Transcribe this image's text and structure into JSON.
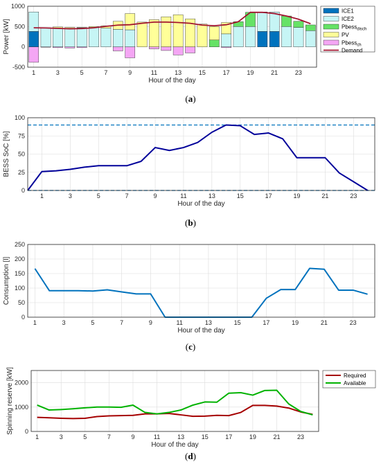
{
  "chart_data": [
    {
      "type": "bar",
      "panel_label": "(a)",
      "xlabel": "Hour of the day",
      "ylabel": "Power [kW]",
      "ylim": [
        -500,
        1000
      ],
      "yticks": [
        -500,
        0,
        500,
        1000
      ],
      "xticks": [
        1,
        3,
        5,
        7,
        9,
        11,
        13,
        15,
        17,
        19,
        21,
        23
      ],
      "grid": true,
      "legend_position": "outside-right",
      "hours": [
        1,
        2,
        3,
        4,
        5,
        6,
        7,
        8,
        9,
        10,
        11,
        12,
        13,
        14,
        15,
        16,
        17,
        18,
        19,
        20,
        21,
        22,
        23,
        24
      ],
      "series": [
        {
          "name": "ICE1",
          "color": "#0072BD",
          "values": [
            380,
            0,
            0,
            0,
            0,
            0,
            0,
            0,
            0,
            0,
            0,
            0,
            0,
            0,
            0,
            0,
            0,
            0,
            0,
            380,
            380,
            0,
            0,
            0
          ]
        },
        {
          "name": "ICE2",
          "color": "#C6F5F5",
          "values": [
            480,
            470,
            460,
            460,
            470,
            480,
            460,
            430,
            420,
            0,
            0,
            0,
            0,
            0,
            0,
            0,
            320,
            500,
            500,
            480,
            480,
            500,
            480,
            400
          ]
        },
        {
          "name": "Pbess",
          "sub": "disch",
          "color": "#66E266",
          "values": [
            0,
            0,
            0,
            0,
            0,
            0,
            0,
            0,
            0,
            0,
            0,
            0,
            0,
            0,
            0,
            170,
            0,
            120,
            350,
            0,
            0,
            260,
            150,
            140
          ]
        },
        {
          "name": "PV",
          "color": "#FFFF99",
          "values": [
            0,
            0,
            30,
            20,
            10,
            20,
            60,
            200,
            400,
            610,
            670,
            740,
            790,
            690,
            560,
            330,
            280,
            0,
            0,
            0,
            0,
            0,
            0,
            0
          ]
        },
        {
          "name": "Pbess",
          "sub": "ch",
          "color": "#F4A6F4",
          "values": [
            -380,
            -10,
            -20,
            -30,
            -20,
            0,
            0,
            -100,
            -270,
            0,
            -50,
            -90,
            -200,
            -150,
            0,
            0,
            -20,
            0,
            0,
            0,
            0,
            0,
            0,
            0
          ]
        }
      ],
      "demand": {
        "name": "Demand",
        "color": "#A2142F",
        "values": [
          470,
          465,
          455,
          445,
          450,
          470,
          505,
          535,
          545,
          580,
          610,
          610,
          600,
          580,
          535,
          520,
          545,
          620,
          850,
          850,
          820,
          760,
          680,
          570
        ]
      }
    },
    {
      "type": "line",
      "panel_label": "(b)",
      "xlabel": "Hour of the day",
      "ylabel": "BESS SoC [%]",
      "ylim": [
        0,
        100
      ],
      "yticks": [
        0,
        25,
        50,
        75,
        100
      ],
      "xticks": [
        1,
        3,
        5,
        7,
        9,
        11,
        13,
        15,
        17,
        19,
        21,
        23
      ],
      "grid": true,
      "x": [
        0,
        1,
        2,
        3,
        4,
        5,
        6,
        7,
        8,
        9,
        10,
        11,
        12,
        13,
        14,
        15,
        16,
        17,
        18,
        19,
        20,
        21,
        22,
        23,
        24
      ],
      "series": [
        {
          "name": "",
          "color": "#00009A",
          "values": [
            0,
            26,
            27,
            29,
            32,
            34,
            34,
            34,
            40,
            59,
            55,
            59,
            66,
            80,
            90,
            89,
            77,
            79,
            71,
            45,
            45,
            45,
            24,
            12,
            0
          ]
        }
      ],
      "limits": {
        "max": 90,
        "min": 0,
        "color": "#0072BD"
      }
    },
    {
      "type": "line",
      "panel_label": "(c)",
      "xlabel": "Hour of the day",
      "ylabel": "Consumption [l]",
      "ylim": [
        0,
        250
      ],
      "yticks": [
        0,
        50,
        100,
        150,
        200,
        250
      ],
      "xticks": [
        1,
        3,
        5,
        7,
        9,
        11,
        13,
        15,
        17,
        19,
        21,
        23
      ],
      "grid": true,
      "x": [
        1,
        2,
        3,
        4,
        5,
        6,
        7,
        8,
        9,
        10,
        11,
        12,
        13,
        14,
        15,
        16,
        17,
        18,
        19,
        20,
        21,
        22,
        23,
        24
      ],
      "series": [
        {
          "name": "",
          "color": "#0072BD",
          "values": [
            167,
            91,
            91,
            91,
            90,
            94,
            87,
            80,
            80,
            0,
            0,
            0,
            0,
            0,
            0,
            0,
            65,
            95,
            95,
            168,
            165,
            93,
            93,
            79
          ]
        }
      ]
    },
    {
      "type": "line",
      "panel_label": "(d)",
      "xlabel": "Hour of the day",
      "ylabel": "Spinning reserve [kW]",
      "ylim": [
        0,
        2500
      ],
      "yticks": [
        0,
        1000,
        2000
      ],
      "xticks": [
        1,
        3,
        5,
        7,
        9,
        11,
        13,
        15,
        17,
        19,
        21,
        23
      ],
      "grid": true,
      "legend_position": "outside-right",
      "x": [
        1,
        2,
        3,
        4,
        5,
        6,
        7,
        8,
        9,
        10,
        11,
        12,
        13,
        14,
        15,
        16,
        17,
        18,
        19,
        20,
        21,
        22,
        23,
        24
      ],
      "series": [
        {
          "name": "Required",
          "color": "#A50000",
          "values": [
            580,
            560,
            540,
            530,
            540,
            610,
            640,
            650,
            660,
            720,
            720,
            740,
            680,
            620,
            630,
            660,
            650,
            780,
            1070,
            1070,
            1040,
            960,
            800,
            700
          ]
        },
        {
          "name": "Available",
          "color": "#00B200",
          "values": [
            1080,
            880,
            900,
            930,
            970,
            1000,
            1000,
            990,
            1080,
            780,
            720,
            780,
            880,
            1080,
            1210,
            1200,
            1570,
            1590,
            1490,
            1680,
            1690,
            1130,
            820,
            680
          ]
        }
      ]
    }
  ]
}
